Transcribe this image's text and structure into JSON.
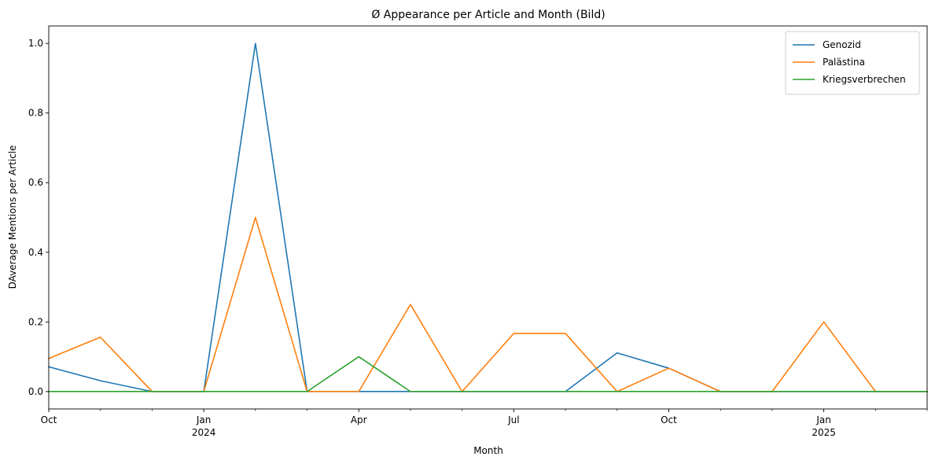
{
  "chart_data": {
    "type": "line",
    "title": "Ø Appearance per Article and Month (Bild)",
    "xlabel": "Month",
    "ylabel": "DAverage Mentions per Article",
    "x": [
      "2023-10",
      "2023-11",
      "2023-12",
      "2024-01",
      "2024-02",
      "2024-03",
      "2024-04",
      "2024-05",
      "2024-06",
      "2024-07",
      "2024-08",
      "2024-09",
      "2024-10",
      "2024-11",
      "2024-12",
      "2025-01",
      "2025-02",
      "2025-03"
    ],
    "ylim": [
      -0.05,
      1.05
    ],
    "y_ticks": [
      "0.0",
      "0.2",
      "0.4",
      "0.6",
      "0.8",
      "1.0"
    ],
    "x_ticks": [
      {
        "x": "2023-10",
        "label": "Oct",
        "sub": ""
      },
      {
        "x": "2024-01",
        "label": "Jan",
        "sub": "2024"
      },
      {
        "x": "2024-04",
        "label": "Apr",
        "sub": ""
      },
      {
        "x": "2024-07",
        "label": "Jul",
        "sub": ""
      },
      {
        "x": "2024-10",
        "label": "Oct",
        "sub": ""
      },
      {
        "x": "2025-01",
        "label": "Jan",
        "sub": "2025"
      }
    ],
    "series": [
      {
        "name": "Genozid",
        "color": "#1f77b4",
        "values": [
          0.071,
          0.031,
          0.0,
          0.0,
          1.0,
          0.0,
          0.0,
          0.0,
          0.0,
          0.0,
          0.0,
          0.111,
          0.067,
          0.0,
          0.0,
          0.0,
          0.0,
          0.0
        ]
      },
      {
        "name": "Palästina",
        "color": "#ff7f0e",
        "values": [
          0.095,
          0.156,
          0.0,
          0.0,
          0.5,
          0.0,
          0.0,
          0.25,
          0.0,
          0.167,
          0.167,
          0.0,
          0.067,
          0.0,
          0.0,
          0.2,
          0.0,
          0.0
        ]
      },
      {
        "name": "Kriegsverbrechen",
        "color": "#2ca02c",
        "values": [
          0.0,
          0.0,
          0.0,
          0.0,
          0.0,
          0.0,
          0.1,
          0.0,
          0.0,
          0.0,
          0.0,
          0.0,
          0.0,
          0.0,
          0.0,
          0.0,
          0.0,
          0.0
        ]
      }
    ],
    "grid": false,
    "legend": "top-right"
  }
}
